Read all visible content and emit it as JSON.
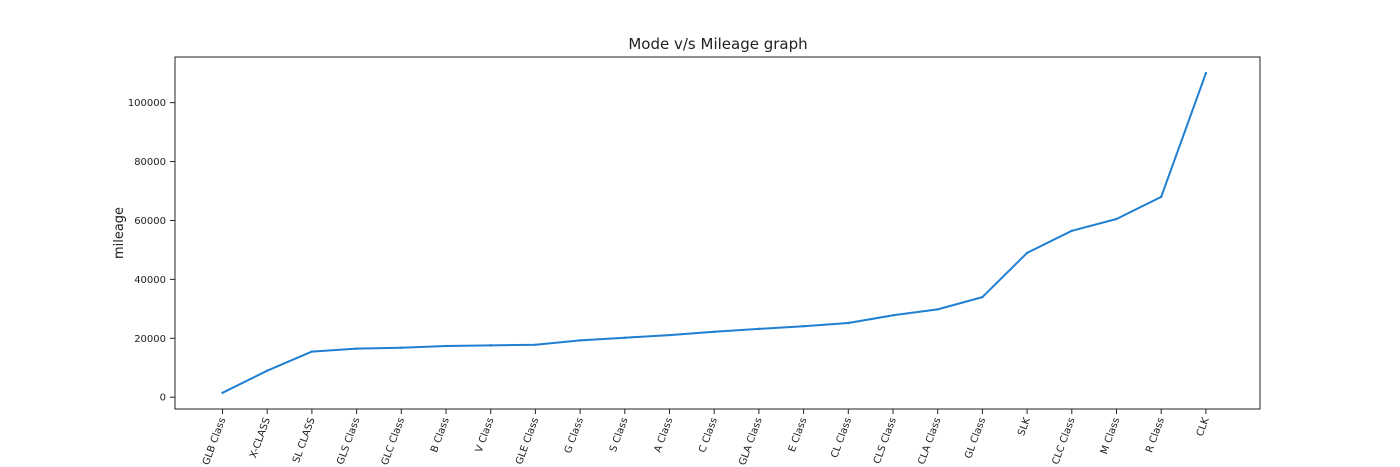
{
  "chart_data": {
    "type": "line",
    "title": "Mode v/s Mileage graph",
    "xlabel": "",
    "ylabel": "mileage",
    "categories": [
      "GLB Class",
      "X-CLASS",
      "SL CLASS",
      "GLS Class",
      "GLC Class",
      "B Class",
      "V Class",
      "GLE Class",
      "G Class",
      "S Class",
      "A Class",
      "C Class",
      "GLA Class",
      "E Class",
      "CL Class",
      "CLS Class",
      "CLA Class",
      "GL Class",
      "SLK",
      "CLC Class",
      "M Class",
      "R Class",
      "CLK"
    ],
    "series": [
      {
        "values": [
          1500,
          9000,
          15500,
          16500,
          16800,
          17400,
          17600,
          17800,
          19300,
          20200,
          21100,
          22200,
          23200,
          24100,
          25200,
          27800,
          29800,
          34000,
          49000,
          56500,
          60500,
          68000,
          110000
        ]
      }
    ],
    "ylim": [
      -4000,
      115500
    ],
    "yticks": [
      0,
      20000,
      40000,
      60000,
      80000,
      100000
    ],
    "ytick_labels": [
      "0",
      "20000",
      "40000",
      "60000",
      "80000",
      "100000"
    ],
    "grid": false,
    "colors": {
      "line": "#1f7fd1"
    }
  }
}
